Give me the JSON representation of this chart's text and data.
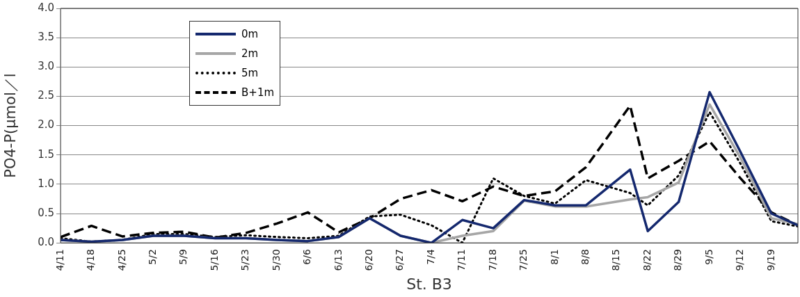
{
  "chart_data": {
    "type": "line",
    "xlabel": "St. B3",
    "ylabel": "PO4-P(μmol／l",
    "x": [
      "--04-11",
      "--04-18",
      "--04-25",
      "--05-02",
      "--05-09",
      "--05-16",
      "--05-23",
      "--05-30",
      "--06-06",
      "--06-13",
      "--06-20",
      "--06-27",
      "--07-04",
      "--07-11",
      "--07-18",
      "--07-25",
      "--08-01",
      "--08-08",
      "--08-18",
      "--08-22",
      "--08-29",
      "--09-05",
      "--09-12",
      "--09-19",
      "--09-25"
    ],
    "series": [
      {
        "name": "0m",
        "color": "#14286e",
        "line_style": "solid",
        "values": [
          0.05,
          0.02,
          0.05,
          0.12,
          0.12,
          0.08,
          0.08,
          0.05,
          0.03,
          0.1,
          0.42,
          0.12,
          0,
          0.39,
          0.25,
          0.73,
          0.64,
          0.64,
          1.25,
          0.2,
          0.7,
          2.57,
          1.55,
          0.5,
          0.3
        ]
      },
      {
        "name": "2m",
        "color": "#a6a6a6",
        "line_style": "solid",
        "values": [
          0.05,
          0.02,
          0.05,
          0.12,
          0.12,
          0.08,
          0.08,
          0.05,
          0.03,
          0.1,
          0.42,
          0.12,
          0,
          0.12,
          0.2,
          0.72,
          0.62,
          0.62,
          0.74,
          0.78,
          1.03,
          2.36,
          1.45,
          0.42,
          0.32
        ]
      },
      {
        "name": "5m",
        "color": "#000000",
        "line_style": "dotted",
        "values": [
          0.08,
          0.02,
          0.05,
          0.15,
          0.15,
          0.1,
          0.13,
          0.1,
          0.08,
          0.12,
          0.45,
          0.48,
          0.3,
          0,
          1.1,
          0.8,
          0.67,
          1.07,
          0.85,
          0.64,
          1.15,
          2.23,
          1.35,
          0.37,
          0.28
        ]
      },
      {
        "name": "B+1m",
        "color": "#000000",
        "line_style": "dashed",
        "values": [
          0.1,
          0.29,
          0.11,
          0.17,
          0.19,
          0.09,
          0.17,
          0.33,
          0.52,
          0.18,
          0.42,
          0.75,
          0.9,
          0.71,
          0.96,
          0.8,
          0.88,
          1.29,
          2.34,
          1.1,
          1.4,
          1.73,
          1.1,
          0.52,
          0.3
        ]
      }
    ],
    "xlim": [
      "--04-11",
      "--09-25"
    ],
    "xticks": [
      {
        "value": "--04-11",
        "label": "4/11"
      },
      {
        "value": "--04-18",
        "label": "4/18"
      },
      {
        "value": "--04-25",
        "label": "4/25"
      },
      {
        "value": "--05-02",
        "label": "5/2"
      },
      {
        "value": "--05-09",
        "label": "5/9"
      },
      {
        "value": "--05-16",
        "label": "5/16"
      },
      {
        "value": "--05-23",
        "label": "5/23"
      },
      {
        "value": "--05-30",
        "label": "5/30"
      },
      {
        "value": "--06-06",
        "label": "6/6"
      },
      {
        "value": "--06-13",
        "label": "6/13"
      },
      {
        "value": "--06-20",
        "label": "6/20"
      },
      {
        "value": "--06-27",
        "label": "6/27"
      },
      {
        "value": "--07-04",
        "label": "7/4"
      },
      {
        "value": "--07-11",
        "label": "7/11"
      },
      {
        "value": "--07-18",
        "label": "7/18"
      },
      {
        "value": "--07-25",
        "label": "7/25"
      },
      {
        "value": "--08-01",
        "label": "8/1"
      },
      {
        "value": "--08-08",
        "label": "8/8"
      },
      {
        "value": "--08-15",
        "label": "8/15"
      },
      {
        "value": "--08-22",
        "label": "8/22"
      },
      {
        "value": "--08-29",
        "label": "8/29"
      },
      {
        "value": "--09-05",
        "label": "9/5"
      },
      {
        "value": "--09-12",
        "label": "9/12"
      },
      {
        "value": "--09-19",
        "label": "9/19"
      }
    ],
    "ylim": [
      0,
      4
    ],
    "yticks": [
      {
        "value": 0,
        "label": "0.0"
      },
      {
        "value": 0.5,
        "label": "0.5"
      },
      {
        "value": 1,
        "label": "1.0"
      },
      {
        "value": 1.5,
        "label": "1.5"
      },
      {
        "value": 2,
        "label": "2.0"
      },
      {
        "value": 2.5,
        "label": "2.5"
      },
      {
        "value": 3,
        "label": "3.0"
      },
      {
        "value": 3.5,
        "label": "3.5"
      },
      {
        "value": 4,
        "label": "4.0"
      }
    ],
    "grid": "y",
    "legend": "top left",
    "marker": "none"
  }
}
